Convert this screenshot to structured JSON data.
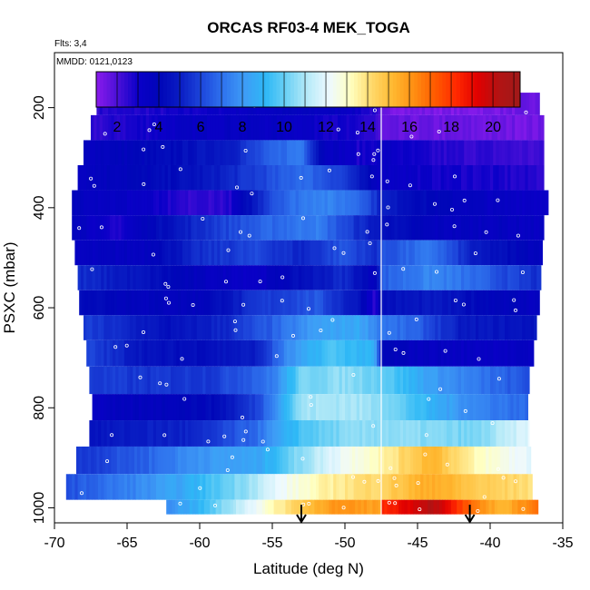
{
  "chart_data": {
    "type": "heatmap",
    "title": "ORCAS RF03-4 MEK_TOGA",
    "annotations": [
      "Flts: 3,4",
      "MMDD: 0121,0123"
    ],
    "xlabel": "Latitude (deg N)",
    "ylabel": "PSXC (mbar)",
    "xlim": [
      -70,
      -35
    ],
    "ylim": [
      1030,
      90
    ],
    "x_ticks": [
      -70,
      -65,
      -60,
      -55,
      -50,
      -45,
      -40,
      -35
    ],
    "x_tick_labels": [
      "-70",
      "-65",
      "-60",
      "-55",
      "-50",
      "-45",
      "-40",
      "-35"
    ],
    "y_ticks": [
      200,
      400,
      600,
      800,
      1000
    ],
    "y_tick_labels": [
      "200",
      "400",
      "600",
      "800",
      "1000"
    ],
    "colorbar": {
      "min": 1,
      "max": 21.3,
      "ticks": [
        2,
        4,
        6,
        8,
        10,
        12,
        14,
        16,
        18,
        20
      ],
      "tick_labels": [
        "2",
        "4",
        "6",
        "8",
        "10",
        "12",
        "14",
        "16",
        "18",
        "20"
      ],
      "colors": [
        "#8a1bec",
        "#4b10d8",
        "#0a00c8",
        "#0006b8",
        "#0a1ec4",
        "#1e48dc",
        "#2f74ee",
        "#3e9cf6",
        "#2eb8f6",
        "#6fd2f5",
        "#b9ebf8",
        "#eef9ff",
        "#ffffc0",
        "#ffd96b",
        "#ffb830",
        "#ff8e12",
        "#ff5a00",
        "#ff2800",
        "#e10000",
        "#b21313",
        "#a11a1a"
      ]
    },
    "divider_latitude": -47.5,
    "arrows_latitude": [
      -53,
      -41.4
    ],
    "rows": [
      {
        "p": 190,
        "x0": -67.1,
        "x1": -36.6,
        "stops": [
          [
            -67,
            2.6
          ],
          [
            -62,
            2.8
          ],
          [
            -58,
            3.2
          ],
          [
            -54,
            3.6
          ],
          [
            -50,
            3.4
          ],
          [
            -48,
            2.6
          ],
          [
            -47.4,
            1.4
          ],
          [
            -42,
            1.2
          ],
          [
            -37,
            1.5
          ]
        ]
      },
      {
        "p": 240,
        "x0": -67.5,
        "x1": -36.3,
        "stops": [
          [
            -67.5,
            2.4
          ],
          [
            -62,
            3.2
          ],
          [
            -58,
            3.5
          ],
          [
            -53,
            3.3
          ],
          [
            -48,
            2.5
          ],
          [
            -47.4,
            1.5
          ],
          [
            -42,
            1.5
          ],
          [
            -37,
            1.4
          ]
        ]
      },
      {
        "p": 290,
        "x0": -68.0,
        "x1": -36.3,
        "stops": [
          [
            -68,
            3.6
          ],
          [
            -62,
            4.2
          ],
          [
            -58,
            5.0
          ],
          [
            -55,
            6.6
          ],
          [
            -53,
            7.4
          ],
          [
            -51.5,
            3.8
          ],
          [
            -49,
            2.8
          ],
          [
            -47.4,
            3.3
          ],
          [
            -44,
            2.6
          ],
          [
            -40,
            2.4
          ],
          [
            -37,
            2.2
          ]
        ]
      },
      {
        "p": 340,
        "x0": -68.4,
        "x1": -36.3,
        "stops": [
          [
            -68.4,
            3.6
          ],
          [
            -64,
            4.0
          ],
          [
            -60,
            4.6
          ],
          [
            -55,
            6.2
          ],
          [
            -53,
            7.0
          ],
          [
            -50,
            5.8
          ],
          [
            -48,
            3.6
          ],
          [
            -47.4,
            3.4
          ],
          [
            -44,
            3.0
          ],
          [
            -40,
            2.8
          ],
          [
            -37,
            2.6
          ]
        ]
      },
      {
        "p": 390,
        "x0": -68.8,
        "x1": -36.0,
        "stops": [
          [
            -68.8,
            3.8
          ],
          [
            -64,
            3.2
          ],
          [
            -61,
            2.4
          ],
          [
            -58,
            2.6
          ],
          [
            -55,
            6.4
          ],
          [
            -52,
            7.6
          ],
          [
            -49,
            7.0
          ],
          [
            -47.4,
            5.0
          ],
          [
            -44,
            4.0
          ],
          [
            -40,
            3.4
          ],
          [
            -36,
            3.2
          ]
        ]
      },
      {
        "p": 440,
        "x0": -68.8,
        "x1": -36.3,
        "stops": [
          [
            -68.8,
            4.0
          ],
          [
            -66,
            2.6
          ],
          [
            -63,
            4.2
          ],
          [
            -59,
            5.8
          ],
          [
            -55,
            6.8
          ],
          [
            -52,
            7.4
          ],
          [
            -49,
            5.4
          ],
          [
            -47.4,
            4.6
          ],
          [
            -44,
            3.6
          ],
          [
            -40,
            3.6
          ],
          [
            -37,
            3.4
          ]
        ]
      },
      {
        "p": 490,
        "x0": -68.6,
        "x1": -36.4,
        "stops": [
          [
            -68.6,
            3.4
          ],
          [
            -64,
            3.6
          ],
          [
            -60,
            5.4
          ],
          [
            -56,
            6.0
          ],
          [
            -53,
            5.2
          ],
          [
            -50,
            6.4
          ],
          [
            -48,
            5.4
          ],
          [
            -47.4,
            6.2
          ],
          [
            -44,
            7.2
          ],
          [
            -41,
            4.8
          ],
          [
            -37,
            3.8
          ]
        ]
      },
      {
        "p": 540,
        "x0": -68.4,
        "x1": -36.5,
        "stops": [
          [
            -68.4,
            5.4
          ],
          [
            -64,
            4.6
          ],
          [
            -60,
            3.6
          ],
          [
            -56,
            3.2
          ],
          [
            -53,
            4.4
          ],
          [
            -50,
            5.4
          ],
          [
            -48,
            3.6
          ],
          [
            -47.4,
            6.6
          ],
          [
            -44,
            7.6
          ],
          [
            -41,
            6.8
          ],
          [
            -38,
            5.8
          ],
          [
            -36.5,
            5.4
          ]
        ]
      },
      {
        "p": 590,
        "x0": -68.3,
        "x1": -36.6,
        "stops": [
          [
            -68.3,
            4.4
          ],
          [
            -64,
            3.8
          ],
          [
            -60,
            3.8
          ],
          [
            -56,
            5.6
          ],
          [
            -52,
            6.4
          ],
          [
            -49,
            4.6
          ],
          [
            -48,
            2.6
          ],
          [
            -47.4,
            4.4
          ],
          [
            -44,
            4.8
          ],
          [
            -41,
            4.2
          ],
          [
            -37,
            3.6
          ]
        ]
      },
      {
        "p": 640,
        "x0": -68.0,
        "x1": -36.8,
        "stops": [
          [
            -68,
            5.8
          ],
          [
            -65,
            5.2
          ],
          [
            -62,
            4.4
          ],
          [
            -58,
            5.4
          ],
          [
            -55,
            6.6
          ],
          [
            -52,
            8.2
          ],
          [
            -49,
            8.6
          ],
          [
            -47.4,
            7.2
          ],
          [
            -45,
            6.6
          ],
          [
            -42,
            4.8
          ],
          [
            -38,
            4.6
          ]
        ]
      },
      {
        "p": 690,
        "x0": -67.8,
        "x1": -37.0,
        "stops": [
          [
            -67.8,
            6.0
          ],
          [
            -63,
            4.4
          ],
          [
            -60,
            4.4
          ],
          [
            -56,
            5.0
          ],
          [
            -54,
            7.6
          ],
          [
            -51,
            9.6
          ],
          [
            -48,
            8.8
          ],
          [
            -47.4,
            4.0
          ],
          [
            -45,
            3.6
          ],
          [
            -42,
            3.4
          ],
          [
            -38,
            3.4
          ]
        ]
      },
      {
        "p": 745,
        "x0": -67.6,
        "x1": -37.3,
        "stops": [
          [
            -67.6,
            5.8
          ],
          [
            -63,
            5.6
          ],
          [
            -59,
            5.8
          ],
          [
            -55,
            7.2
          ],
          [
            -53,
            10.2
          ],
          [
            -50,
            10.6
          ],
          [
            -47.4,
            10.0
          ],
          [
            -44,
            8.2
          ],
          [
            -41,
            7.2
          ],
          [
            -37.3,
            6.2
          ]
        ]
      },
      {
        "p": 800,
        "x0": -67.4,
        "x1": -37.4,
        "stops": [
          [
            -67.4,
            3.4
          ],
          [
            -63,
            3.8
          ],
          [
            -59,
            4.2
          ],
          [
            -56,
            6.0
          ],
          [
            -53,
            10.8
          ],
          [
            -50,
            11.0
          ],
          [
            -47.4,
            10.6
          ],
          [
            -44,
            8.8
          ],
          [
            -41,
            7.6
          ],
          [
            -37.4,
            6.8
          ]
        ]
      },
      {
        "p": 850,
        "x0": -67.6,
        "x1": -37.3,
        "stops": [
          [
            -67.6,
            4.6
          ],
          [
            -64,
            5.0
          ],
          [
            -60,
            5.2
          ],
          [
            -56,
            7.0
          ],
          [
            -53,
            9.6
          ],
          [
            -50,
            10.4
          ],
          [
            -47.4,
            10.6
          ],
          [
            -44,
            10.4
          ],
          [
            -41,
            10.2
          ],
          [
            -38,
            11.6
          ],
          [
            -37.3,
            12.0
          ]
        ]
      },
      {
        "p": 905,
        "x0": -68.5,
        "x1": -37.2,
        "stops": [
          [
            -68.5,
            5.6
          ],
          [
            -64,
            6.6
          ],
          [
            -60,
            8.0
          ],
          [
            -56,
            8.4
          ],
          [
            -53,
            10.6
          ],
          [
            -50,
            12.4
          ],
          [
            -47.4,
            13.4
          ],
          [
            -44,
            15.4
          ],
          [
            -41,
            13.2
          ],
          [
            -38,
            12.2
          ],
          [
            -37.2,
            12.0
          ]
        ]
      },
      {
        "p": 960,
        "x0": -69.2,
        "x1": -37.1,
        "stops": [
          [
            -69.2,
            6.2
          ],
          [
            -65,
            7.4
          ],
          [
            -61,
            8.6
          ],
          [
            -57,
            10.6
          ],
          [
            -54,
            12.4
          ],
          [
            -51,
            13.6
          ],
          [
            -47.4,
            14.4
          ],
          [
            -44,
            15.6
          ],
          [
            -41,
            14.6
          ],
          [
            -38,
            14.2
          ],
          [
            -37.1,
            14.0
          ]
        ]
      },
      {
        "p": 1008,
        "x0": -62.3,
        "x1": -36.7,
        "stops": [
          [
            -62.3,
            7.8
          ],
          [
            -60,
            9.0
          ],
          [
            -57,
            11.6
          ],
          [
            -54,
            14.0
          ],
          [
            -51,
            16.0
          ],
          [
            -47.6,
            15.8
          ],
          [
            -47.4,
            18.2
          ],
          [
            -44,
            20.4
          ],
          [
            -41,
            16.4
          ],
          [
            -39,
            15.2
          ],
          [
            -36.7,
            17.0
          ]
        ]
      }
    ]
  }
}
